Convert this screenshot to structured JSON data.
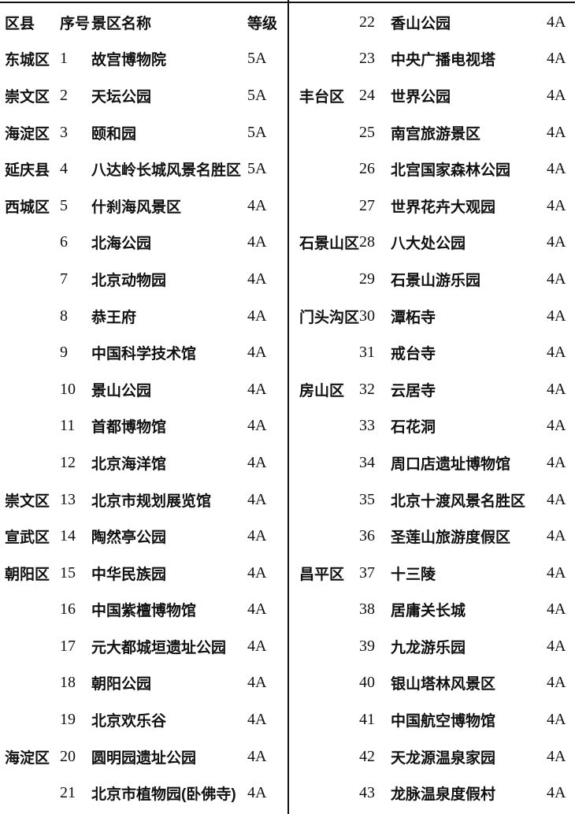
{
  "page": {
    "background": "#ffffff",
    "text_color": "#111111",
    "rule_color": "#111111"
  },
  "table": {
    "headers": {
      "district": "区县",
      "no": "序号",
      "name": "景区名称",
      "grade": "等级"
    },
    "left_rows": [
      {
        "district": "东城区",
        "no": "1",
        "name": "故宫博物院",
        "grade": "5A"
      },
      {
        "district": "崇文区",
        "no": "2",
        "name": "天坛公园",
        "grade": "5A"
      },
      {
        "district": "海淀区",
        "no": "3",
        "name": "颐和园",
        "grade": "5A"
      },
      {
        "district": "延庆县",
        "no": "4",
        "name": "八达岭长城风景名胜区",
        "grade": "5A"
      },
      {
        "district": "西城区",
        "no": "5",
        "name": "什刹海风景区",
        "grade": "4A"
      },
      {
        "district": "",
        "no": "6",
        "name": "北海公园",
        "grade": "4A"
      },
      {
        "district": "",
        "no": "7",
        "name": "北京动物园",
        "grade": "4A"
      },
      {
        "district": "",
        "no": "8",
        "name": "恭王府",
        "grade": "4A"
      },
      {
        "district": "",
        "no": "9",
        "name": "中国科学技术馆",
        "grade": "4A"
      },
      {
        "district": "",
        "no": "10",
        "name": "景山公园",
        "grade": "4A"
      },
      {
        "district": "",
        "no": "11",
        "name": "首都博物馆",
        "grade": "4A"
      },
      {
        "district": "",
        "no": "12",
        "name": "北京海洋馆",
        "grade": "4A"
      },
      {
        "district": "崇文区",
        "no": "13",
        "name": "北京市规划展览馆",
        "grade": "4A"
      },
      {
        "district": "宣武区",
        "no": "14",
        "name": "陶然亭公园",
        "grade": "4A"
      },
      {
        "district": "朝阳区",
        "no": "15",
        "name": "中华民族园",
        "grade": "4A"
      },
      {
        "district": "",
        "no": "16",
        "name": "中国紫檀博物馆",
        "grade": "4A"
      },
      {
        "district": "",
        "no": "17",
        "name": "元大都城垣遗址公园",
        "grade": "4A"
      },
      {
        "district": "",
        "no": "18",
        "name": "朝阳公园",
        "grade": "4A"
      },
      {
        "district": "",
        "no": "19",
        "name": "北京欢乐谷",
        "grade": "4A"
      },
      {
        "district": "海淀区",
        "no": "20",
        "name": "圆明园遗址公园",
        "grade": "4A"
      },
      {
        "district": "",
        "no": "21",
        "name": "北京市植物园(卧佛寺)",
        "grade": "4A"
      }
    ],
    "right_rows": [
      {
        "district": "",
        "no": "22",
        "name": "香山公园",
        "grade": "4A"
      },
      {
        "district": "",
        "no": "23",
        "name": "中央广播电视塔",
        "grade": "4A"
      },
      {
        "district": "丰台区",
        "no": "24",
        "name": "世界公园",
        "grade": "4A"
      },
      {
        "district": "",
        "no": "25",
        "name": "南宫旅游景区",
        "grade": "4A"
      },
      {
        "district": "",
        "no": "26",
        "name": "北宫国家森林公园",
        "grade": "4A"
      },
      {
        "district": "",
        "no": "27",
        "name": "世界花卉大观园",
        "grade": "4A"
      },
      {
        "district": "石景山区",
        "no": "28",
        "name": "八大处公园",
        "grade": "4A"
      },
      {
        "district": "",
        "no": "29",
        "name": "石景山游乐园",
        "grade": "4A"
      },
      {
        "district": "门头沟区",
        "no": "30",
        "name": "潭柘寺",
        "grade": "4A"
      },
      {
        "district": "",
        "no": "31",
        "name": "戒台寺",
        "grade": "4A"
      },
      {
        "district": "房山区",
        "no": "32",
        "name": "云居寺",
        "grade": "4A"
      },
      {
        "district": "",
        "no": "33",
        "name": "石花洞",
        "grade": "4A"
      },
      {
        "district": "",
        "no": "34",
        "name": "周口店遗址博物馆",
        "grade": "4A"
      },
      {
        "district": "",
        "no": "35",
        "name": "北京十渡风景名胜区",
        "grade": "4A"
      },
      {
        "district": "",
        "no": "36",
        "name": "圣莲山旅游度假区",
        "grade": "4A"
      },
      {
        "district": "昌平区",
        "no": "37",
        "name": "十三陵",
        "grade": "4A"
      },
      {
        "district": "",
        "no": "38",
        "name": "居庸关长城",
        "grade": "4A"
      },
      {
        "district": "",
        "no": "39",
        "name": "九龙游乐园",
        "grade": "4A"
      },
      {
        "district": "",
        "no": "40",
        "name": "银山塔林风景区",
        "grade": "4A"
      },
      {
        "district": "",
        "no": "41",
        "name": "中国航空博物馆",
        "grade": "4A"
      },
      {
        "district": "",
        "no": "42",
        "name": "天龙源温泉家园",
        "grade": "4A"
      },
      {
        "district": "",
        "no": "43",
        "name": "龙脉温泉度假村",
        "grade": "4A"
      }
    ]
  }
}
